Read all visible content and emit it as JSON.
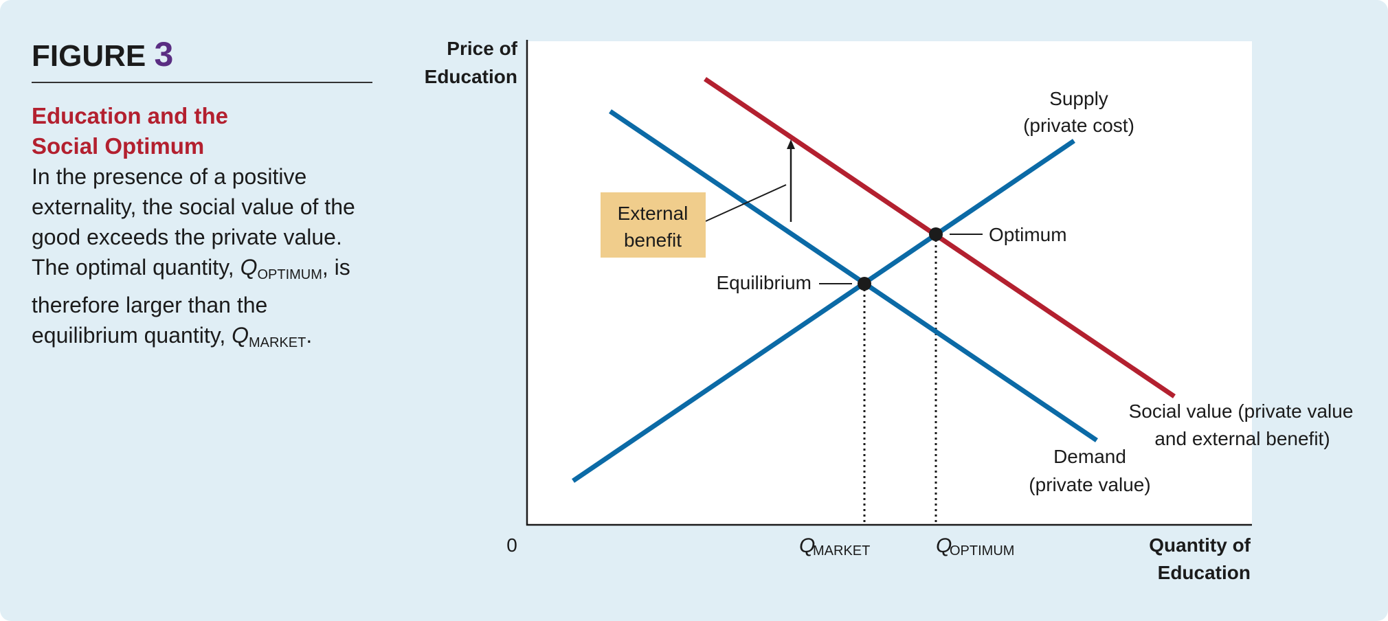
{
  "caption": {
    "figure_word": "FIGURE",
    "figure_number": "3",
    "heading_line1": "Education and the",
    "heading_line2": "Social Optimum",
    "body_part1": "In the presence of a positive externality, the social value of the good exceeds the private value. The optimal quantity, ",
    "q_symbol": "Q",
    "optimum_subscript": "OPTIMUM",
    "body_part2": ", is therefore larger than the equilibrium quantity, ",
    "market_subscript": "MARKET",
    "body_part3": "."
  },
  "diagram": {
    "y_axis_label_line1": "Price of",
    "y_axis_label_line2": "Education",
    "x_axis_label_line1": "Quantity of",
    "x_axis_label_line2": "Education",
    "origin_label": "0",
    "q_symbol": "Q",
    "q_market_sub": "MARKET",
    "q_optimum_sub": "OPTIMUM",
    "supply_label_line1": "Supply",
    "supply_label_line2": "(private cost)",
    "demand_label_line1": "Demand",
    "demand_label_line2": "(private value)",
    "social_label_line1": "Social value (private value",
    "social_label_line2": "and external benefit)",
    "optimum_label": "Optimum",
    "equilibrium_label": "Equilibrium",
    "external_benefit_line1": "External",
    "external_benefit_line2": "benefit",
    "colors": {
      "supply_demand": "#0b6aa6",
      "social_value": "#b3202f",
      "callout_box": "#f0cd8c",
      "plot_background": "#ffffff",
      "panel_background": "#e0eef5"
    }
  }
}
